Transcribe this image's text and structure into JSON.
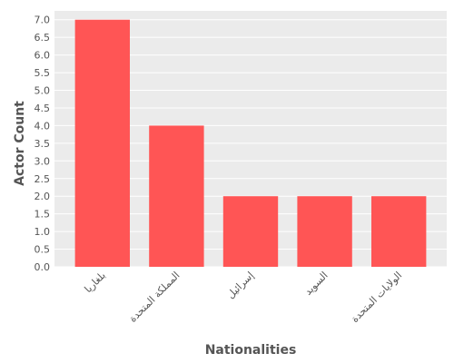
{
  "chart_data": {
    "type": "bar",
    "categories": [
      "بلغاريا",
      "المملكة المتحدة",
      "إسرائيل",
      "السويد",
      "الولايات المتحدة"
    ],
    "values": [
      7,
      4,
      2,
      2,
      2
    ],
    "xlabel": "Nationalities",
    "ylabel": "Actor Count",
    "ylim": [
      0,
      7.25
    ],
    "yticks": [
      "0.0",
      "0.5",
      "1.0",
      "1.5",
      "2.0",
      "2.5",
      "3.0",
      "3.5",
      "4.0",
      "4.5",
      "5.0",
      "5.5",
      "6.0",
      "6.5",
      "7.0"
    ],
    "grid": true,
    "bar_color": "#ff5555",
    "background_color": "#ebebeb",
    "grid_color": "#ffffff"
  }
}
